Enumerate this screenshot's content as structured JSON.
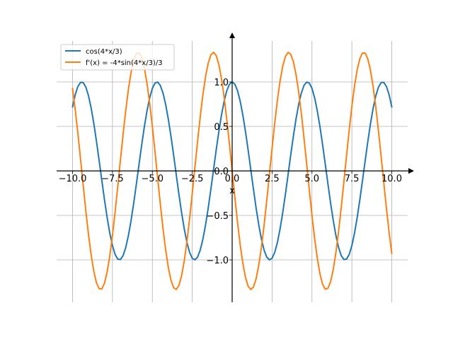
{
  "chart_data": {
    "type": "line",
    "title": "",
    "xlabel": "x",
    "ylabel": "",
    "xlim": [
      -10.0,
      10.0
    ],
    "ylim": [
      -1.333,
      1.333
    ],
    "grid": true,
    "legend_position": "upper-left",
    "x_ticks": [
      -10.0,
      -7.5,
      -5.0,
      -2.5,
      0.0,
      2.5,
      5.0,
      7.5,
      10.0
    ],
    "x_tick_labels": [
      "−10.0",
      "−7.5",
      "−5.0",
      "−2.5",
      "0.0",
      "2.5",
      "5.0",
      "7.5",
      "10.0"
    ],
    "y_ticks": [
      -1.0,
      -0.5,
      0.0,
      0.5,
      1.0
    ],
    "y_tick_labels": [
      "−1.0",
      "−0.5",
      "0.0",
      "0.5",
      "1.0"
    ],
    "series": [
      {
        "name": "cos(4*x/3)",
        "color": "#1f77b4",
        "x": [
          -10.0,
          -9.5,
          -9.0,
          -8.5,
          -8.0,
          -7.5,
          -7.0,
          -6.5,
          -6.0,
          -5.5,
          -5.0,
          -4.5,
          -4.0,
          -3.5,
          -3.0,
          -2.5,
          -2.0,
          -1.5,
          -1.0,
          -0.5,
          0.0,
          0.5,
          1.0,
          1.5,
          2.0,
          2.5,
          3.0,
          3.5,
          4.0,
          4.5,
          5.0,
          5.5,
          6.0,
          6.5,
          7.0,
          7.5,
          8.0,
          8.5,
          9.0,
          9.5,
          10.0
        ],
        "y": [
          0.735,
          0.998,
          0.844,
          0.339,
          -0.292,
          -0.839,
          -0.995,
          -0.778,
          -0.146,
          0.551,
          0.938,
          0.96,
          0.535,
          -0.146,
          -0.654,
          -0.982,
          -0.889,
          -0.416,
          0.238,
          0.786,
          1.0,
          0.786,
          0.238,
          -0.416,
          -0.889,
          -0.982,
          -0.654,
          -0.146,
          0.535,
          0.96,
          0.938,
          0.551,
          -0.146,
          -0.778,
          -0.995,
          -0.839,
          -0.292,
          0.339,
          0.844,
          0.998,
          0.735
        ]
      },
      {
        "name": "f'(x) = -4*sin(4*x/3)/3",
        "color": "#ff7f0e",
        "x": [
          -10.0,
          -9.5,
          -9.0,
          -8.5,
          -8.0,
          -7.5,
          -7.0,
          -6.5,
          -6.0,
          -5.5,
          -5.0,
          -4.5,
          -4.0,
          -3.5,
          -3.0,
          -2.5,
          -2.0,
          -1.5,
          -1.0,
          -0.5,
          0.0,
          0.5,
          1.0,
          1.5,
          2.0,
          2.5,
          3.0,
          3.5,
          4.0,
          4.5,
          5.0,
          5.5,
          6.0,
          6.5,
          7.0,
          7.5,
          8.0,
          8.5,
          9.0,
          9.5,
          10.0
        ],
        "y": [
          0.904,
          -0.076,
          -0.716,
          -1.254,
          -1.275,
          -0.726,
          0.129,
          0.839,
          1.319,
          1.114,
          0.461,
          -0.371,
          -1.126,
          -1.319,
          -1.01,
          -0.253,
          0.611,
          1.212,
          1.295,
          0.827,
          0.0,
          -0.827,
          -1.295,
          -1.212,
          -0.611,
          0.253,
          1.01,
          1.319,
          1.126,
          0.371,
          -0.461,
          -1.114,
          -1.319,
          -0.839,
          -0.129,
          0.726,
          1.275,
          1.254,
          0.716,
          0.076,
          -0.904
        ]
      }
    ]
  }
}
